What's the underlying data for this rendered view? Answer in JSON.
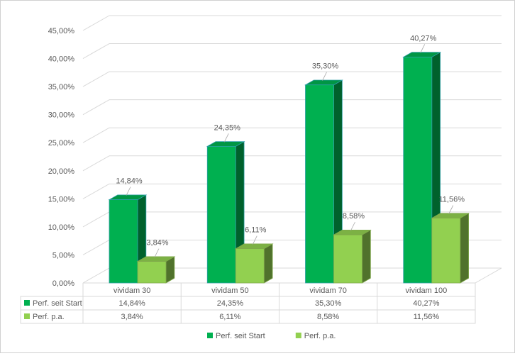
{
  "chart_data": {
    "type": "bar",
    "categories": [
      "vividam 30",
      "vividam 50",
      "vividam 70",
      "vividam 100"
    ],
    "series": [
      {
        "name": "Perf. seit Start",
        "values": [
          14.84,
          24.35,
          35.3,
          40.27
        ],
        "labels": [
          "14,84%",
          "24,35%",
          "35,30%",
          "40,27%"
        ],
        "color": "#00b050"
      },
      {
        "name": "Perf. p.a.",
        "values": [
          3.84,
          6.11,
          8.58,
          11.56
        ],
        "labels": [
          "3,84%",
          "6,11%",
          "8,58%",
          "11,56%"
        ],
        "color": "#92d050"
      }
    ],
    "yticks": [
      "0,00%",
      "5,00%",
      "10,00%",
      "15,00%",
      "20,00%",
      "25,00%",
      "30,00%",
      "35,00%",
      "40,00%",
      "45,00%"
    ],
    "ylim": [
      0,
      45
    ],
    "grid": true,
    "legend_position": "bottom",
    "data_table": true,
    "title": "",
    "xlabel": "",
    "ylabel": ""
  }
}
